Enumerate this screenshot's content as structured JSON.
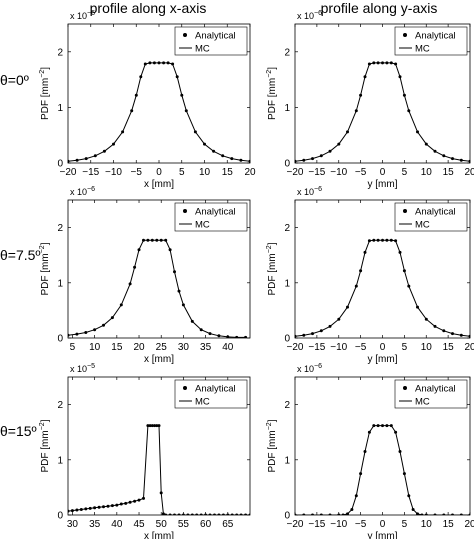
{
  "column_titles": [
    "profile along x-axis",
    "profile along y-axis"
  ],
  "row_labels": [
    "θ=0º",
    "θ=7.5º",
    "θ=15º"
  ],
  "chart_data": [
    {
      "type": "line",
      "id": "p00",
      "exponent_label": "x 10",
      "exponent_power": "-6",
      "xlabel": "x [mm]",
      "ylabel": "PDF [mm",
      "ylabel_sup": "−2",
      "ylabel_end": "]",
      "xlim": [
        -20,
        20
      ],
      "ylim": [
        0,
        2.5
      ],
      "xticks": [
        -20,
        -15,
        -10,
        -5,
        0,
        5,
        10,
        15,
        20
      ],
      "yticks": [
        0,
        1,
        2
      ],
      "legend": {
        "position": "top-right",
        "entries": [
          "Analytical",
          "MC"
        ]
      },
      "series": [
        {
          "name": "Analytical",
          "style": "markers",
          "x": [
            -20,
            -18,
            -16,
            -14,
            -12,
            -10,
            -8,
            -6,
            -5,
            -4,
            -3,
            -2,
            -1,
            0,
            1,
            2,
            3,
            4,
            5,
            6,
            8,
            10,
            12,
            14,
            16,
            18,
            20
          ],
          "y": [
            0.03,
            0.05,
            0.08,
            0.13,
            0.21,
            0.34,
            0.56,
            0.94,
            1.22,
            1.55,
            1.78,
            1.8,
            1.8,
            1.8,
            1.8,
            1.8,
            1.78,
            1.55,
            1.22,
            0.94,
            0.56,
            0.34,
            0.21,
            0.13,
            0.08,
            0.05,
            0.03
          ]
        },
        {
          "name": "MC",
          "style": "line",
          "x": [
            -20,
            -18,
            -16,
            -14,
            -12,
            -10,
            -8,
            -6,
            -5,
            -4,
            -3,
            -2,
            -1,
            0,
            1,
            2,
            3,
            4,
            5,
            6,
            8,
            10,
            12,
            14,
            16,
            18,
            20
          ],
          "y": [
            0.03,
            0.05,
            0.08,
            0.13,
            0.21,
            0.34,
            0.56,
            0.94,
            1.22,
            1.55,
            1.78,
            1.8,
            1.8,
            1.8,
            1.8,
            1.8,
            1.78,
            1.55,
            1.22,
            0.94,
            0.56,
            0.34,
            0.21,
            0.13,
            0.08,
            0.05,
            0.03
          ]
        }
      ]
    },
    {
      "type": "line",
      "id": "p01",
      "exponent_label": "x 10",
      "exponent_power": "-6",
      "xlabel": "y [mm]",
      "ylabel": "PDF [mm",
      "ylabel_sup": "−2",
      "ylabel_end": "]",
      "xlim": [
        -20,
        20
      ],
      "ylim": [
        0,
        2.5
      ],
      "xticks": [
        -20,
        -15,
        -10,
        -5,
        0,
        5,
        10,
        15,
        20
      ],
      "yticks": [
        0,
        1,
        2
      ],
      "legend": {
        "position": "top-right",
        "entries": [
          "Analytical",
          "MC"
        ]
      },
      "series": [
        {
          "name": "Analytical",
          "style": "markers",
          "x": [
            -20,
            -18,
            -16,
            -14,
            -12,
            -10,
            -8,
            -6,
            -5,
            -4,
            -3,
            -2,
            -1,
            0,
            1,
            2,
            3,
            4,
            5,
            6,
            8,
            10,
            12,
            14,
            16,
            18,
            20
          ],
          "y": [
            0.03,
            0.05,
            0.08,
            0.13,
            0.21,
            0.34,
            0.56,
            0.94,
            1.22,
            1.55,
            1.78,
            1.8,
            1.8,
            1.8,
            1.8,
            1.8,
            1.78,
            1.55,
            1.22,
            0.94,
            0.56,
            0.34,
            0.21,
            0.13,
            0.08,
            0.05,
            0.03
          ]
        },
        {
          "name": "MC",
          "style": "line",
          "x": [
            -20,
            -18,
            -16,
            -14,
            -12,
            -10,
            -8,
            -6,
            -5,
            -4,
            -3,
            -2,
            -1,
            0,
            1,
            2,
            3,
            4,
            5,
            6,
            8,
            10,
            12,
            14,
            16,
            18,
            20
          ],
          "y": [
            0.03,
            0.05,
            0.08,
            0.13,
            0.21,
            0.34,
            0.56,
            0.94,
            1.22,
            1.55,
            1.78,
            1.8,
            1.8,
            1.8,
            1.8,
            1.8,
            1.78,
            1.55,
            1.22,
            0.94,
            0.56,
            0.34,
            0.21,
            0.13,
            0.08,
            0.05,
            0.03
          ]
        }
      ]
    },
    {
      "type": "line",
      "id": "p10",
      "exponent_label": "x 10",
      "exponent_power": "-6",
      "xlabel": "x [mm]",
      "ylabel": "PDF [mm",
      "ylabel_sup": "−2",
      "ylabel_end": "]",
      "xlim": [
        4,
        45
      ],
      "ylim": [
        0,
        2.5
      ],
      "xticks": [
        5,
        10,
        15,
        20,
        25,
        30,
        35,
        40
      ],
      "yticks": [
        0,
        1,
        2
      ],
      "legend": {
        "position": "top-right",
        "entries": [
          "Analytical",
          "MC"
        ]
      },
      "series": [
        {
          "name": "Analytical",
          "style": "markers",
          "x": [
            4,
            6,
            8,
            10,
            12,
            14,
            16,
            18,
            19,
            20,
            21,
            22,
            23,
            24,
            25,
            26,
            27,
            28,
            29,
            30,
            32,
            34,
            36,
            38,
            40,
            42,
            44
          ],
          "y": [
            0.05,
            0.07,
            0.1,
            0.15,
            0.23,
            0.37,
            0.6,
            0.98,
            1.28,
            1.6,
            1.77,
            1.77,
            1.77,
            1.77,
            1.77,
            1.77,
            1.6,
            1.2,
            0.85,
            0.6,
            0.3,
            0.15,
            0.08,
            0.04,
            0.02,
            0.01,
            0.01
          ]
        },
        {
          "name": "MC",
          "style": "line",
          "x": [
            4,
            6,
            8,
            10,
            12,
            14,
            16,
            18,
            19,
            20,
            21,
            22,
            23,
            24,
            25,
            26,
            27,
            28,
            29,
            30,
            32,
            34,
            36,
            38,
            40,
            42,
            44
          ],
          "y": [
            0.05,
            0.07,
            0.1,
            0.15,
            0.23,
            0.37,
            0.6,
            0.98,
            1.28,
            1.6,
            1.77,
            1.77,
            1.77,
            1.77,
            1.77,
            1.77,
            1.6,
            1.2,
            0.85,
            0.6,
            0.3,
            0.15,
            0.08,
            0.04,
            0.02,
            0.01,
            0.01
          ]
        }
      ]
    },
    {
      "type": "line",
      "id": "p11",
      "exponent_label": "x 10",
      "exponent_power": "-6",
      "xlabel": "y [mm]",
      "ylabel": "PDF [mm",
      "ylabel_sup": "−2",
      "ylabel_end": "]",
      "xlim": [
        -20,
        20
      ],
      "ylim": [
        0,
        2.5
      ],
      "xticks": [
        -20,
        -15,
        -10,
        -5,
        0,
        5,
        10,
        15,
        20
      ],
      "yticks": [
        0,
        1,
        2
      ],
      "legend": {
        "position": "top-right",
        "entries": [
          "Analytical",
          "MC"
        ]
      },
      "series": [
        {
          "name": "Analytical",
          "style": "markers",
          "x": [
            -20,
            -18,
            -16,
            -14,
            -12,
            -10,
            -8,
            -6,
            -5,
            -4,
            -3,
            -2,
            -1,
            0,
            1,
            2,
            3,
            4,
            5,
            6,
            8,
            10,
            12,
            14,
            16,
            18,
            20
          ],
          "y": [
            0.03,
            0.05,
            0.08,
            0.13,
            0.21,
            0.34,
            0.56,
            0.94,
            1.22,
            1.55,
            1.76,
            1.77,
            1.77,
            1.77,
            1.77,
            1.77,
            1.76,
            1.55,
            1.22,
            0.94,
            0.56,
            0.34,
            0.21,
            0.13,
            0.08,
            0.05,
            0.03
          ]
        },
        {
          "name": "MC",
          "style": "line",
          "x": [
            -20,
            -18,
            -16,
            -14,
            -12,
            -10,
            -8,
            -6,
            -5,
            -4,
            -3,
            -2,
            -1,
            0,
            1,
            2,
            3,
            4,
            5,
            6,
            8,
            10,
            12,
            14,
            16,
            18,
            20
          ],
          "y": [
            0.03,
            0.05,
            0.08,
            0.13,
            0.21,
            0.34,
            0.56,
            0.94,
            1.22,
            1.55,
            1.76,
            1.77,
            1.77,
            1.77,
            1.77,
            1.77,
            1.76,
            1.55,
            1.22,
            0.94,
            0.56,
            0.34,
            0.21,
            0.13,
            0.08,
            0.05,
            0.03
          ]
        }
      ]
    },
    {
      "type": "line",
      "id": "p20",
      "exponent_label": "x 10",
      "exponent_power": "-5",
      "xlabel": "x [mm]",
      "ylabel": "PDF [mm",
      "ylabel_sup": "−2",
      "ylabel_end": "]",
      "xlim": [
        29,
        70
      ],
      "ylim": [
        0,
        2.5
      ],
      "xticks": [
        30,
        35,
        40,
        45,
        50,
        55,
        60,
        65
      ],
      "yticks": [
        0,
        1,
        2
      ],
      "legend": {
        "position": "top-right",
        "entries": [
          "Analytical",
          "MC"
        ]
      },
      "series": [
        {
          "name": "Analytical",
          "style": "markers",
          "x": [
            29,
            30,
            31,
            32,
            33,
            34,
            35,
            36,
            37,
            38,
            39,
            40,
            41,
            42,
            43,
            44,
            45,
            46,
            47,
            47.5,
            48,
            48.5,
            49,
            49.5,
            50,
            50.5,
            51,
            52,
            53,
            54,
            55,
            56,
            57,
            58,
            59,
            60,
            61,
            62,
            63,
            64,
            65,
            66,
            67,
            68,
            69,
            70
          ],
          "y": [
            0.07,
            0.08,
            0.09,
            0.1,
            0.11,
            0.12,
            0.13,
            0.14,
            0.15,
            0.16,
            0.17,
            0.18,
            0.2,
            0.21,
            0.23,
            0.25,
            0.27,
            0.3,
            1.62,
            1.62,
            1.62,
            1.62,
            1.62,
            1.62,
            0.4,
            0.02,
            0,
            0,
            0,
            0,
            0,
            0,
            0,
            0,
            0,
            0,
            0,
            0,
            0,
            0,
            0,
            0,
            0,
            0,
            0,
            0
          ]
        },
        {
          "name": "MC",
          "style": "line",
          "x": [
            29,
            30,
            31,
            32,
            33,
            34,
            35,
            36,
            37,
            38,
            39,
            40,
            41,
            42,
            43,
            44,
            45,
            46,
            47,
            47.5,
            48,
            48.5,
            49,
            49.5,
            50,
            50.5,
            51,
            52,
            53,
            54,
            55,
            56,
            57,
            58,
            59,
            60,
            61,
            62,
            63,
            64,
            65,
            66,
            67,
            68,
            69,
            70
          ],
          "y": [
            0.07,
            0.08,
            0.09,
            0.1,
            0.11,
            0.12,
            0.13,
            0.14,
            0.15,
            0.16,
            0.17,
            0.18,
            0.2,
            0.21,
            0.23,
            0.25,
            0.27,
            0.3,
            1.62,
            1.62,
            1.62,
            1.62,
            1.62,
            1.62,
            0.4,
            0.02,
            0,
            0,
            0,
            0,
            0,
            0,
            0,
            0,
            0,
            0,
            0,
            0,
            0,
            0,
            0,
            0,
            0,
            0,
            0,
            0
          ]
        }
      ]
    },
    {
      "type": "line",
      "id": "p21",
      "exponent_label": "x 10",
      "exponent_power": "-6",
      "xlabel": "y [mm]",
      "ylabel": "PDF [mm",
      "ylabel_sup": "−2",
      "ylabel_end": "]",
      "xlim": [
        -20,
        20
      ],
      "ylim": [
        0,
        2.5
      ],
      "xticks": [
        -20,
        -15,
        -10,
        -5,
        0,
        5,
        10,
        15,
        20
      ],
      "yticks": [
        0,
        1,
        2
      ],
      "legend": {
        "position": "top-right",
        "entries": [
          "Analytical",
          "MC"
        ]
      },
      "series": [
        {
          "name": "Analytical",
          "style": "markers",
          "x": [
            -20,
            -18,
            -16,
            -14,
            -12,
            -10,
            -9,
            -8,
            -7,
            -6,
            -5,
            -4,
            -3,
            -2,
            -1,
            0,
            1,
            2,
            3,
            4,
            5,
            6,
            7,
            8,
            9,
            10,
            12,
            14,
            16,
            18,
            20
          ],
          "y": [
            0,
            0,
            0,
            0,
            0,
            0,
            0,
            0.02,
            0.1,
            0.35,
            0.75,
            1.15,
            1.5,
            1.62,
            1.62,
            1.62,
            1.62,
            1.62,
            1.5,
            1.15,
            0.75,
            0.35,
            0.1,
            0.02,
            0,
            0,
            0,
            0,
            0,
            0,
            0
          ]
        },
        {
          "name": "MC",
          "style": "line",
          "x": [
            -20,
            -18,
            -16,
            -14,
            -12,
            -10,
            -9,
            -8,
            -7,
            -6,
            -5,
            -4,
            -3,
            -2,
            -1,
            0,
            1,
            2,
            3,
            4,
            5,
            6,
            7,
            8,
            9,
            10,
            12,
            14,
            16,
            18,
            20
          ],
          "y": [
            0,
            0,
            0,
            0,
            0,
            0,
            0,
            0.02,
            0.1,
            0.35,
            0.75,
            1.15,
            1.5,
            1.62,
            1.62,
            1.62,
            1.62,
            1.62,
            1.5,
            1.15,
            0.75,
            0.35,
            0.1,
            0.02,
            0,
            0,
            0,
            0,
            0,
            0,
            0
          ]
        }
      ]
    }
  ]
}
